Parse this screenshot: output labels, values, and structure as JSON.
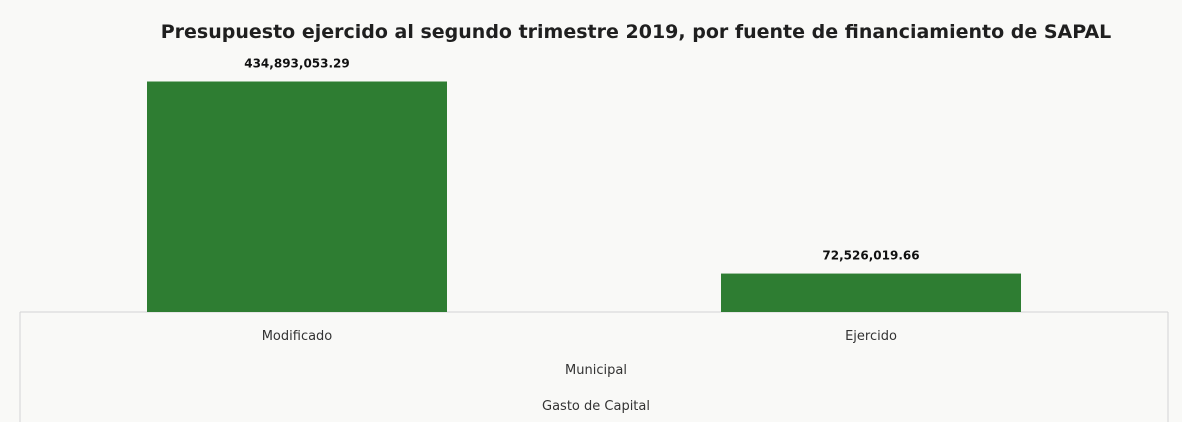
{
  "chart_data": {
    "type": "bar",
    "title": "Presupuesto ejercido al segundo trimestre 2019, por fuente de financiamiento de SAPAL",
    "categories": [
      "Modificado",
      "Ejercido"
    ],
    "values": [
      434893053.29,
      72526019.66
    ],
    "data_labels": [
      "434,893,053.29",
      "72,526,019.66"
    ],
    "group_levels": [
      "Municipal",
      "Gasto de Capital"
    ],
    "xlabel": "",
    "ylabel": "",
    "ylim": [
      0,
      500000000
    ],
    "grid": false,
    "legend": "none",
    "bar_color": "#2e7d32"
  }
}
